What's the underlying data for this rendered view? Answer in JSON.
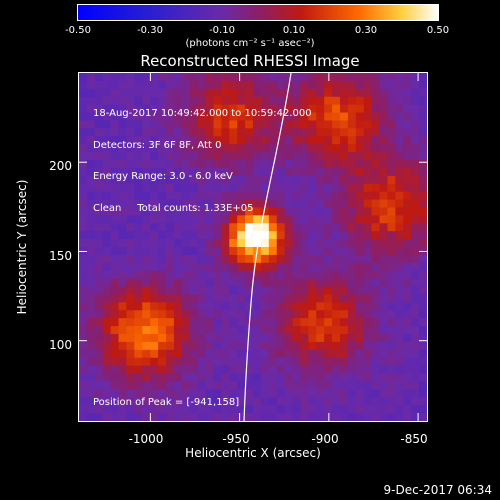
{
  "colorbar": {
    "ticks": [
      "-0.50",
      "-0.30",
      "-0.10",
      "0.10",
      "0.30",
      "0.50"
    ],
    "units": "(photons cm⁻² s⁻¹ asec⁻²)"
  },
  "title": "Reconstructed RHESSI Image",
  "info": {
    "line1": "18-Aug-2017 10:49:42.000 to 10:59:42.000",
    "line2": "Detectors: 3F 6F 8F, Att 0",
    "line3": "Energy Range: 3.0 - 6.0 keV",
    "line4": "Clean     Total counts: 1.33E+05"
  },
  "peak_label": "Position of Peak = [-941,158]",
  "x_axis": {
    "label": "Heliocentric X (arcsec)",
    "ticks": [
      "-1000",
      "-950",
      "-900",
      "-850"
    ]
  },
  "y_axis": {
    "label": "Heliocentric Y (arcsec)",
    "ticks": [
      "200",
      "150",
      "100"
    ]
  },
  "timestamp": "9-Dec-2017 06:34",
  "colors": {
    "background": "#000000",
    "low": "#6a2fa0",
    "mid": "#b82a10",
    "high": "#ffffff"
  },
  "chart_data": {
    "type": "heatmap",
    "title": "Reconstructed RHESSI Image",
    "xlabel": "Heliocentric X (arcsec)",
    "ylabel": "Heliocentric Y (arcsec)",
    "xlim": [
      -1040,
      -845
    ],
    "ylim": [
      55,
      250
    ],
    "color_range": [
      -0.5,
      0.5
    ],
    "peak": {
      "x": -941,
      "y": 158
    },
    "sources": [
      {
        "x": -941,
        "y": 158,
        "value": 0.5
      },
      {
        "x": -1003,
        "y": 105,
        "value": 0.2
      },
      {
        "x": -895,
        "y": 225,
        "value": 0.12
      },
      {
        "x": -865,
        "y": 175,
        "value": 0.1
      },
      {
        "x": -903,
        "y": 110,
        "value": 0.1
      },
      {
        "x": -955,
        "y": 225,
        "value": 0.08
      }
    ]
  }
}
